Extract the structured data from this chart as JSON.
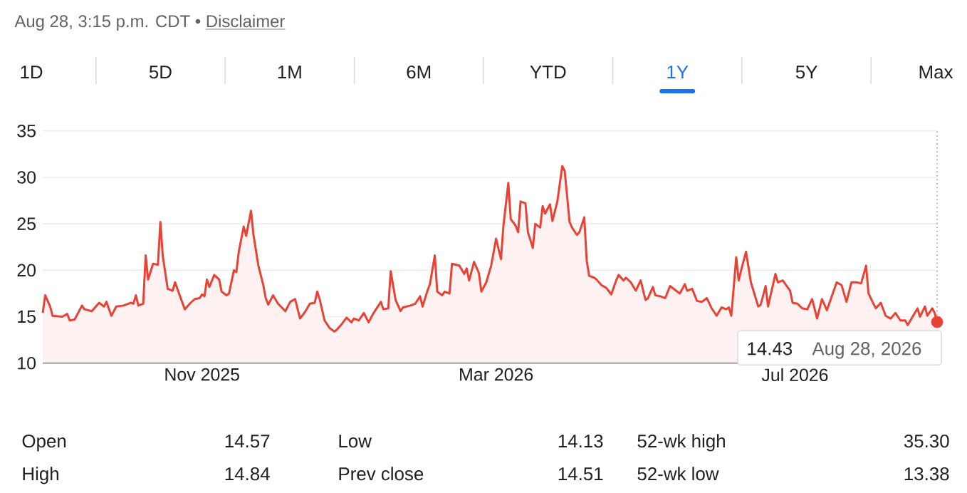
{
  "chart_data": {
    "type": "area",
    "x": [
      "2025-08-28",
      "2025-08-29",
      "2025-08-31",
      "2025-09-01",
      "2025-09-05",
      "2025-09-07",
      "2025-09-08",
      "2025-09-10",
      "2025-09-13",
      "2025-09-14",
      "2025-09-17",
      "2025-09-20",
      "2025-09-22",
      "2025-09-23",
      "2025-09-25",
      "2025-09-27",
      "2025-09-30",
      "2025-10-03",
      "2025-10-04",
      "2025-10-05",
      "2025-10-06",
      "2025-10-08",
      "2025-10-09",
      "2025-10-10",
      "2025-10-12",
      "2025-10-14",
      "2025-10-15",
      "2025-10-16",
      "2025-10-18",
      "2025-10-20",
      "2025-10-21",
      "2025-10-23",
      "2025-10-25",
      "2025-10-27",
      "2025-10-29",
      "2025-10-31",
      "2025-11-01",
      "2025-11-02",
      "2025-11-03",
      "2025-11-04",
      "2025-11-06",
      "2025-11-08",
      "2025-11-09",
      "2025-11-11",
      "2025-11-12",
      "2025-11-14",
      "2025-11-15",
      "2025-11-16",
      "2025-11-18",
      "2025-11-19",
      "2025-11-21",
      "2025-11-22",
      "2025-11-24",
      "2025-11-26",
      "2025-11-27",
      "2025-11-28",
      "2025-11-30",
      "2025-12-02",
      "2025-12-05",
      "2025-12-07",
      "2025-12-09",
      "2025-12-11",
      "2025-12-13",
      "2025-12-15",
      "2025-12-17",
      "2025-12-18",
      "2025-12-19",
      "2025-12-21",
      "2025-12-23",
      "2025-12-25",
      "2025-12-26",
      "2025-12-28",
      "2025-12-30",
      "2026-01-01",
      "2026-01-02",
      "2026-01-04",
      "2026-01-06",
      "2026-01-08",
      "2026-01-10",
      "2026-01-13",
      "2026-01-14",
      "2026-01-16",
      "2026-01-17",
      "2026-01-19",
      "2026-01-21",
      "2026-01-22",
      "2026-01-25",
      "2026-01-27",
      "2026-01-29",
      "2026-01-30",
      "2026-02-01",
      "2026-02-02",
      "2026-02-04",
      "2026-02-05",
      "2026-02-07",
      "2026-02-08",
      "2026-02-10",
      "2026-02-11",
      "2026-02-14",
      "2026-02-16",
      "2026-02-17",
      "2026-02-18",
      "2026-02-20",
      "2026-02-22",
      "2026-02-23",
      "2026-02-25",
      "2026-02-27",
      "2026-03-01",
      "2026-03-03",
      "2026-03-04",
      "2026-03-06",
      "2026-03-07",
      "2026-03-09",
      "2026-03-10",
      "2026-03-11",
      "2026-03-13",
      "2026-03-14",
      "2026-03-16",
      "2026-03-17",
      "2026-03-19",
      "2026-03-20",
      "2026-03-21",
      "2026-03-23",
      "2026-03-24",
      "2026-03-26",
      "2026-03-28",
      "2026-03-29",
      "2026-03-31",
      "2026-04-01",
      "2026-04-03",
      "2026-04-04",
      "2026-04-06",
      "2026-04-07",
      "2026-04-08",
      "2026-04-10",
      "2026-04-11",
      "2026-04-13",
      "2026-04-15",
      "2026-04-17",
      "2026-04-19",
      "2026-04-20",
      "2026-04-22",
      "2026-04-23",
      "2026-04-25",
      "2026-04-27",
      "2026-04-29",
      "2026-05-01",
      "2026-05-02",
      "2026-05-04",
      "2026-05-05",
      "2026-05-07",
      "2026-05-09",
      "2026-05-11",
      "2026-05-13",
      "2026-05-15",
      "2026-05-17",
      "2026-05-18",
      "2026-05-20",
      "2026-05-22",
      "2026-05-24",
      "2026-05-26",
      "2026-05-28",
      "2026-05-30",
      "2026-06-01",
      "2026-06-03",
      "2026-06-04",
      "2026-06-05",
      "2026-06-07",
      "2026-06-08",
      "2026-06-09",
      "2026-06-11",
      "2026-06-13",
      "2026-06-16",
      "2026-06-17",
      "2026-06-19",
      "2026-06-20",
      "2026-06-23",
      "2026-06-24",
      "2026-06-26",
      "2026-06-29",
      "2026-06-30",
      "2026-07-02",
      "2026-07-04",
      "2026-07-06",
      "2026-07-08",
      "2026-07-10",
      "2026-07-12",
      "2026-07-14",
      "2026-07-18",
      "2026-07-20",
      "2026-07-22",
      "2026-07-24",
      "2026-07-26",
      "2026-07-28",
      "2026-07-30",
      "2026-07-31",
      "2026-08-02",
      "2026-08-03",
      "2026-08-05",
      "2026-08-07",
      "2026-08-09",
      "2026-08-11",
      "2026-08-13",
      "2026-08-15",
      "2026-08-16",
      "2026-08-20",
      "2026-08-21",
      "2026-08-23",
      "2026-08-24",
      "2026-08-26",
      "2026-08-27",
      "2026-08-28"
    ],
    "values": [
      15.4,
      17.3,
      16.1,
      15.1,
      15.0,
      15.3,
      14.6,
      14.7,
      16.2,
      15.8,
      15.6,
      16.5,
      16.1,
      16.6,
      15.1,
      16.1,
      16.2,
      16.5,
      16.4,
      17.3,
      16.2,
      16.4,
      21.6,
      19.0,
      20.7,
      20.6,
      25.2,
      21.5,
      18.0,
      17.8,
      18.7,
      17.2,
      15.8,
      16.4,
      16.9,
      17.0,
      17.4,
      17.2,
      19.0,
      18.2,
      19.5,
      19.0,
      17.7,
      17.3,
      17.5,
      20.0,
      19.8,
      22.0,
      24.7,
      23.7,
      26.4,
      23.8,
      20.5,
      18.4,
      17.0,
      16.3,
      17.3,
      16.4,
      15.6,
      16.6,
      16.9,
      14.8,
      15.5,
      16.4,
      16.5,
      17.7,
      16.9,
      14.6,
      13.8,
      13.4,
      13.6,
      14.2,
      14.9,
      14.4,
      14.8,
      14.6,
      15.4,
      14.4,
      15.4,
      16.6,
      15.8,
      15.9,
      19.9,
      16.8,
      15.6,
      16.0,
      16.2,
      16.4,
      17.2,
      16.1,
      17.8,
      18.5,
      21.6,
      17.7,
      17.3,
      17.7,
      17.5,
      20.7,
      20.5,
      19.6,
      20.2,
      18.9,
      20.9,
      19.7,
      17.7,
      18.7,
      20.5,
      23.4,
      21.2,
      24.8,
      29.4,
      25.5,
      24.8,
      24.1,
      27.4,
      27.2,
      24.1,
      22.4,
      25.0,
      24.6,
      26.9,
      26.1,
      27.1,
      25.3,
      27.4,
      31.2,
      30.7,
      25.2,
      24.6,
      23.8,
      24.1,
      25.7,
      21.0,
      19.4,
      19.2,
      19.0,
      18.4,
      18.1,
      17.4,
      18.9,
      19.5,
      18.9,
      19.2,
      18.7,
      17.8,
      18.9,
      16.8,
      17.0,
      18.2,
      17.3,
      17.2,
      17.0,
      18.3,
      17.9,
      17.5,
      18.5,
      17.8,
      18.0,
      16.7,
      16.6,
      17.0,
      15.9,
      15.1,
      16.0,
      15.8,
      16.0,
      15.1,
      21.4,
      18.9,
      20.0,
      22.0,
      18.7,
      16.1,
      16.3,
      18.3,
      16.1,
      19.6,
      18.7,
      18.9,
      17.8,
      16.5,
      16.4,
      15.9,
      15.8,
      16.9,
      14.8,
      16.9,
      15.7,
      18.7,
      18.4,
      16.6,
      18.7,
      18.7,
      18.6,
      20.5,
      17.5,
      16.4,
      15.9,
      16.5,
      15.1,
      14.8,
      15.4,
      14.6,
      14.6,
      14.1,
      15.9,
      15.0,
      16.1,
      15.1,
      15.9,
      15.4,
      14.43
    ],
    "color": "#e94235",
    "xlim": [
      "2025-08-28",
      "2026-08-28"
    ],
    "xticks": [
      {
        "value": "2025-11-01",
        "label": "Nov 2025"
      },
      {
        "value": "2026-03-01",
        "label": "Mar 2026"
      },
      {
        "value": "2026-07-01",
        "label": "Jul 2026"
      }
    ],
    "ylim": [
      10,
      35
    ],
    "yticks": [
      10,
      15,
      20,
      25,
      30,
      35
    ],
    "grid": "y",
    "ref_lines": [
      {
        "axis": "x",
        "value": "2026-08-28",
        "color": "#9aa0a6",
        "line_style": "dotted"
      }
    ],
    "annotations": [
      "Aug 28, 3:15 p.m. CDT •",
      "Disclaimer",
      "1D",
      "5D",
      "1M",
      "6M",
      "YTD",
      "1Y",
      "5Y",
      "Max",
      "14.43",
      "Aug 28, 2026",
      "Open",
      "14.57",
      "High",
      "14.84",
      "Low",
      "14.13",
      "Prev close",
      "14.51",
      "52-wk high",
      "35.30",
      "52-wk low",
      "13.38"
    ]
  }
}
